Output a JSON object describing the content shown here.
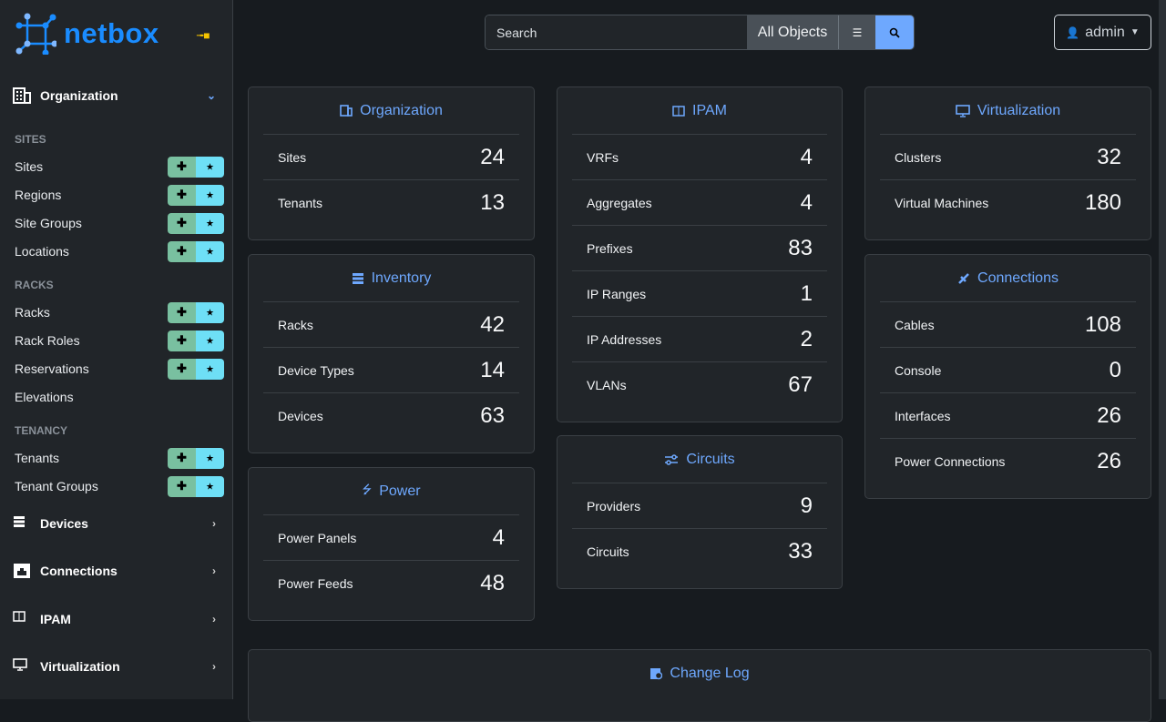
{
  "brand": {
    "name": "netbox",
    "accent": "#1a8cff"
  },
  "sidebar": {
    "organization": {
      "label": "Organization",
      "icon": "building-icon"
    },
    "sections": [
      {
        "title": "SITES",
        "items": [
          {
            "label": "Sites",
            "buttons": true
          },
          {
            "label": "Regions",
            "buttons": true
          },
          {
            "label": "Site Groups",
            "buttons": true
          },
          {
            "label": "Locations",
            "buttons": true
          }
        ]
      },
      {
        "title": "RACKS",
        "items": [
          {
            "label": "Racks",
            "buttons": true
          },
          {
            "label": "Rack Roles",
            "buttons": true
          },
          {
            "label": "Reservations",
            "buttons": true
          },
          {
            "label": "Elevations",
            "buttons": false
          }
        ]
      },
      {
        "title": "TENANCY",
        "items": [
          {
            "label": "Tenants",
            "buttons": true
          },
          {
            "label": "Tenant Groups",
            "buttons": true
          }
        ]
      }
    ],
    "groups": [
      {
        "label": "Devices",
        "icon": "server-icon"
      },
      {
        "label": "Connections",
        "icon": "ethernet-icon"
      },
      {
        "label": "IPAM",
        "icon": "ipam-icon"
      },
      {
        "label": "Virtualization",
        "icon": "monitor-icon"
      }
    ]
  },
  "search": {
    "placeholder": "Search",
    "scope": "All Objects"
  },
  "user": {
    "name": "admin"
  },
  "cards": [
    {
      "title": "Organization",
      "icon": "building-icon",
      "rows": [
        {
          "label": "Sites",
          "count": "24"
        },
        {
          "label": "Tenants",
          "count": "13"
        }
      ]
    },
    {
      "title": "Inventory",
      "icon": "server-icon",
      "rows": [
        {
          "label": "Racks",
          "count": "42"
        },
        {
          "label": "Device Types",
          "count": "14"
        },
        {
          "label": "Devices",
          "count": "63"
        }
      ]
    },
    {
      "title": "Power",
      "icon": "flash-icon",
      "rows": [
        {
          "label": "Power Panels",
          "count": "4"
        },
        {
          "label": "Power Feeds",
          "count": "48"
        }
      ]
    },
    {
      "title": "IPAM",
      "icon": "ipam-icon",
      "rows": [
        {
          "label": "VRFs",
          "count": "4"
        },
        {
          "label": "Aggregates",
          "count": "4"
        },
        {
          "label": "Prefixes",
          "count": "83"
        },
        {
          "label": "IP Ranges",
          "count": "1"
        },
        {
          "label": "IP Addresses",
          "count": "2"
        },
        {
          "label": "VLANs",
          "count": "67"
        }
      ]
    },
    {
      "title": "Circuits",
      "icon": "transit-icon",
      "rows": [
        {
          "label": "Providers",
          "count": "9"
        },
        {
          "label": "Circuits",
          "count": "33"
        }
      ]
    },
    {
      "title": "Virtualization",
      "icon": "monitor-icon",
      "rows": [
        {
          "label": "Clusters",
          "count": "32"
        },
        {
          "label": "Virtual Machines",
          "count": "180"
        }
      ]
    },
    {
      "title": "Connections",
      "icon": "connection-icon",
      "rows": [
        {
          "label": "Cables",
          "count": "108"
        },
        {
          "label": "Console",
          "count": "0"
        },
        {
          "label": "Interfaces",
          "count": "26"
        },
        {
          "label": "Power Connections",
          "count": "26"
        }
      ]
    },
    {
      "title": "Change Log",
      "icon": "clipboard-clock-icon",
      "rows": []
    }
  ]
}
